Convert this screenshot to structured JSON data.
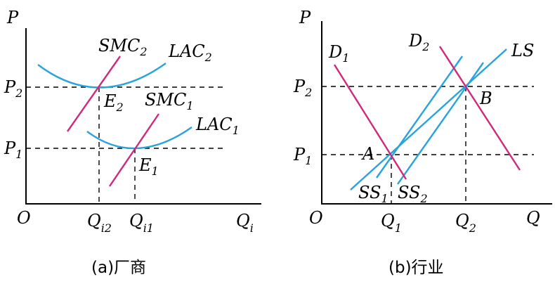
{
  "panel_a": {
    "y_axis": "P",
    "origin": "O",
    "x_axis": {
      "main": "Q",
      "sub": "i"
    },
    "p2": {
      "main": "P",
      "sub": "2"
    },
    "p1": {
      "main": "P",
      "sub": "1"
    },
    "smc2": {
      "main": "SMC",
      "sub": "2"
    },
    "lac2": {
      "main": "LAC",
      "sub": "2"
    },
    "smc1": {
      "main": "SMC",
      "sub": "1"
    },
    "lac1": {
      "main": "LAC",
      "sub": "1"
    },
    "e2": {
      "main": "E",
      "sub": "2"
    },
    "e1": {
      "main": "E",
      "sub": "1"
    },
    "qi2": {
      "main": "Q",
      "sub": "i2"
    },
    "qi1": {
      "main": "Q",
      "sub": "i1"
    },
    "caption": "(a)厂商"
  },
  "panel_b": {
    "y_axis": "P",
    "origin": "O",
    "x_axis": "Q",
    "p2": {
      "main": "P",
      "sub": "2"
    },
    "p1": {
      "main": "P",
      "sub": "1"
    },
    "d1": {
      "main": "D",
      "sub": "1"
    },
    "d2": {
      "main": "D",
      "sub": "2"
    },
    "ls": "LS",
    "b": "B",
    "a": "A",
    "ss1": {
      "main": "SS",
      "sub": "1"
    },
    "ss2": {
      "main": "SS",
      "sub": "2"
    },
    "q1": {
      "main": "Q",
      "sub": "1"
    },
    "q2": {
      "main": "Q",
      "sub": "2"
    },
    "caption": "(b)行业"
  },
  "colors": {
    "cost_and_supply_curves": "#29a3dd",
    "marginal_cost_and_demand_curves": "#d0287a",
    "axes_and_guides": "#000000"
  }
}
